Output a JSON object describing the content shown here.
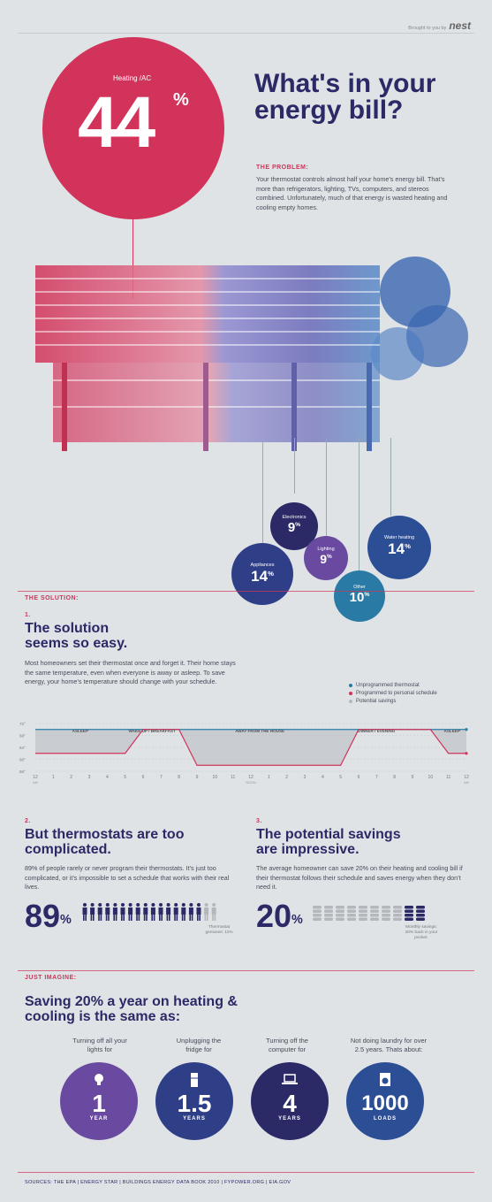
{
  "brand": {
    "prefix": "Brought to you by",
    "name": "nest"
  },
  "hero": {
    "label": "Heating /AC",
    "value": "44",
    "unit": "%",
    "title": "What's in your energy bill?"
  },
  "problem": {
    "label": "THE PROBLEM:",
    "text": "Your thermostat controls almost half your home’s energy bill. That’s more than refrigerators, lighting, TVs, computers, and stereos combined. Unfortunately, much of that energy is wasted heating and cooling empty homes."
  },
  "breakdown": {
    "chart_data": {
      "type": "pie",
      "categories": [
        "Heating /AC",
        "Appliances",
        "Electronics",
        "Lighting",
        "Other",
        "Water heating"
      ],
      "values": [
        44,
        14,
        9,
        9,
        10,
        14
      ],
      "unit": "%"
    },
    "colors": [
      "#d2335a",
      "#2f3f87",
      "#2b2966",
      "#6a4aa0",
      "#2a7aa6",
      "#2c4e95"
    ]
  },
  "solution": {
    "label": "THE SOLUTION:",
    "num": "1.",
    "title": "The solution seems so easy.",
    "text": "Most homeowners set their thermostat once and forget it. Their home stays the same temperature, even when everyone is away or asleep. To save energy, your home’s temperature should change with your schedule."
  },
  "schedule": {
    "legend": [
      {
        "label": "Unprogrammed thermostat",
        "color": "#2a7aa6"
      },
      {
        "label": "Programmed to personal schedule",
        "color": "#d2335a"
      },
      {
        "label": "Potential savings",
        "color": "#b4b8bd"
      }
    ],
    "periods": [
      "ASLEEP",
      "WAKE UP / BREAKFAST",
      "AWAY FROM THE HOUSE",
      "DINNER / EVENING",
      "ASLEEP"
    ],
    "chart_data": {
      "type": "line",
      "x": [
        "12",
        "1",
        "2",
        "3",
        "4",
        "5",
        "6",
        "7",
        "8",
        "9",
        "10",
        "11",
        "12",
        "1",
        "2",
        "3",
        "4",
        "5",
        "6",
        "7",
        "8",
        "9",
        "10",
        "11",
        "12"
      ],
      "x_sub": [
        "AM",
        "",
        "",
        "",
        "",
        "",
        "",
        "",
        "",
        "",
        "",
        "",
        "NOON",
        "",
        "",
        "",
        "",
        "",
        "",
        "",
        "",
        "",
        "",
        "",
        "AM"
      ],
      "y_ticks": [
        "72°",
        "68°",
        "64°",
        "60°",
        "56°"
      ],
      "ylim": [
        56,
        72
      ],
      "series": [
        {
          "values": [
            70,
            70,
            70,
            70,
            70,
            70,
            70,
            70,
            70,
            70,
            70,
            70,
            70,
            70,
            70,
            70,
            70,
            70,
            70,
            70,
            70,
            70,
            70,
            70,
            70
          ]
        },
        {
          "values": [
            62,
            62,
            62,
            62,
            62,
            62,
            70,
            70,
            70,
            58,
            58,
            58,
            58,
            58,
            58,
            58,
            58,
            58,
            70,
            70,
            70,
            70,
            70,
            62,
            62
          ]
        }
      ]
    }
  },
  "complicated": {
    "num": "2.",
    "title": "But thermostats are too complicated.",
    "text": "89% of people rarely or never program their thermostats. It’s just too complicated, or it’s impossible to set a schedule that works with their real lives.",
    "value": "89",
    "unit": "%",
    "note": "Thermostat geniuses: 11%",
    "people_share": 0.89,
    "people_total": 18
  },
  "savings": {
    "num": "3.",
    "title": "The potential savings are impressive.",
    "text": "The average homeowner can save 20% on their heating and cooling bill if their thermostat follows their schedule and saves energy when they don’t need it.",
    "value": "20",
    "unit": "%",
    "note": "Monthly savings: 20% back in your pocket.",
    "coins_share": 0.2,
    "coins_total": 10
  },
  "imagine": {
    "label": "JUST IMAGINE:",
    "title": "Saving 20% a year on heating & cooling is the same as:",
    "items": [
      {
        "caption": "Turning off all your lights for",
        "value": "1",
        "unit": "YEAR",
        "icon": "lightbulb-icon",
        "color": "#6a4aa0"
      },
      {
        "caption": "Unplugging the fridge for",
        "value": "1.5",
        "unit": "YEARS",
        "icon": "fridge-icon",
        "color": "#2f3f87"
      },
      {
        "caption": "Turning off the computer for",
        "value": "4",
        "unit": "YEARS",
        "icon": "laptop-icon",
        "color": "#2b2966"
      },
      {
        "caption": "Not doing laundry for over 2.5 years. Thats about:",
        "value": "1000",
        "unit": "LOADS",
        "icon": "washer-icon",
        "color": "#2c4e95"
      }
    ]
  },
  "sources": "SOURCES: THE EPA | ENERGY STAR | BUILDINGS ENERGY DATA BOOK 2010 | FYPOWER.ORG | EIA.GOV"
}
